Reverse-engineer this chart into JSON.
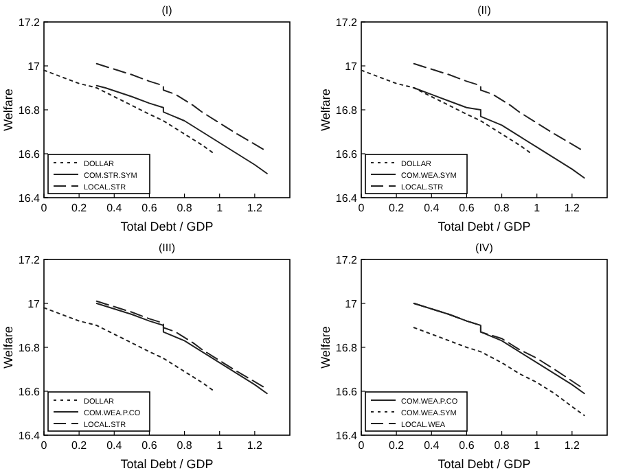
{
  "chart_data": [
    {
      "type": "line",
      "title": "(I)",
      "xlabel": "Total Debt / GDP",
      "ylabel": "Welfare",
      "xlim": [
        0,
        1.4
      ],
      "xticks": [
        0,
        0.2,
        0.4,
        0.6,
        0.8,
        1,
        1.2
      ],
      "ylim": [
        16.4,
        17.2
      ],
      "yticks": [
        16.4,
        16.6,
        16.8,
        17,
        17.2
      ],
      "legend": "bottom left",
      "series": [
        {
          "name": "DOLLAR",
          "color": "#222222",
          "line_style": "dotted",
          "x": [
            0,
            0.2,
            0.3,
            0.4,
            0.5,
            0.6,
            0.68,
            0.8,
            0.9,
            0.97
          ],
          "values": [
            16.98,
            16.92,
            16.9,
            16.86,
            16.82,
            16.78,
            16.75,
            16.69,
            16.64,
            16.6
          ]
        },
        {
          "name": "COM.STR.SYM",
          "color": "#222222",
          "line_style": "solid",
          "x": [
            0.3,
            0.35,
            0.5,
            0.6,
            0.68,
            0.68,
            0.8,
            0.9,
            1.0,
            1.1,
            1.2,
            1.27
          ],
          "values": [
            16.91,
            16.9,
            16.86,
            16.83,
            16.81,
            16.79,
            16.75,
            16.7,
            16.65,
            16.6,
            16.55,
            16.51
          ]
        },
        {
          "name": "LOCAL.STR",
          "color": "#222222",
          "line_style": "dashed",
          "x": [
            0.3,
            0.5,
            0.6,
            0.68,
            0.68,
            0.75,
            0.85,
            0.9,
            1.0,
            1.1,
            1.25
          ],
          "values": [
            17.01,
            16.96,
            16.93,
            16.91,
            16.89,
            16.87,
            16.82,
            16.79,
            16.74,
            16.69,
            16.62
          ]
        }
      ]
    },
    {
      "type": "line",
      "title": "(II)",
      "xlabel": "Total Debt / GDP",
      "ylabel": "Welfare",
      "xlim": [
        0,
        1.4
      ],
      "xticks": [
        0,
        0.2,
        0.4,
        0.6,
        0.8,
        1,
        1.2
      ],
      "ylim": [
        16.4,
        17.2
      ],
      "yticks": [
        16.4,
        16.6,
        16.8,
        17,
        17.2
      ],
      "legend": "bottom left",
      "series": [
        {
          "name": "DOLLAR",
          "color": "#222222",
          "line_style": "dotted",
          "x": [
            0,
            0.2,
            0.3,
            0.4,
            0.5,
            0.6,
            0.68,
            0.8,
            0.9,
            0.97
          ],
          "values": [
            16.98,
            16.92,
            16.9,
            16.86,
            16.82,
            16.78,
            16.75,
            16.69,
            16.64,
            16.6
          ]
        },
        {
          "name": "COM.WEA.SYM",
          "color": "#222222",
          "line_style": "solid",
          "x": [
            0.3,
            0.4,
            0.5,
            0.6,
            0.68,
            0.68,
            0.8,
            0.9,
            1.0,
            1.1,
            1.2,
            1.27
          ],
          "values": [
            16.9,
            16.87,
            16.84,
            16.81,
            16.8,
            16.77,
            16.73,
            16.68,
            16.63,
            16.58,
            16.53,
            16.49
          ]
        },
        {
          "name": "LOCAL.STR",
          "color": "#222222",
          "line_style": "dashed",
          "x": [
            0.3,
            0.5,
            0.6,
            0.68,
            0.68,
            0.75,
            0.85,
            0.9,
            1.0,
            1.1,
            1.25
          ],
          "values": [
            17.01,
            16.96,
            16.93,
            16.91,
            16.89,
            16.87,
            16.82,
            16.79,
            16.74,
            16.69,
            16.62
          ]
        }
      ]
    },
    {
      "type": "line",
      "title": "(III)",
      "xlabel": "Total Debt / GDP",
      "ylabel": "Welfare",
      "xlim": [
        0,
        1.4
      ],
      "xticks": [
        0,
        0.2,
        0.4,
        0.6,
        0.8,
        1,
        1.2
      ],
      "ylim": [
        16.4,
        17.2
      ],
      "yticks": [
        16.4,
        16.6,
        16.8,
        17,
        17.2
      ],
      "legend": "bottom left",
      "series": [
        {
          "name": "DOLLAR",
          "color": "#222222",
          "line_style": "dotted",
          "x": [
            0,
            0.2,
            0.3,
            0.4,
            0.5,
            0.6,
            0.68,
            0.8,
            0.9,
            0.97
          ],
          "values": [
            16.98,
            16.92,
            16.9,
            16.86,
            16.82,
            16.78,
            16.75,
            16.69,
            16.64,
            16.6
          ]
        },
        {
          "name": "COM.WEA.P.CO",
          "color": "#222222",
          "line_style": "solid",
          "x": [
            0.3,
            0.5,
            0.6,
            0.68,
            0.68,
            0.8,
            0.9,
            1.0,
            1.1,
            1.2,
            1.27
          ],
          "values": [
            17.0,
            16.95,
            16.92,
            16.9,
            16.87,
            16.83,
            16.78,
            16.73,
            16.68,
            16.63,
            16.59
          ]
        },
        {
          "name": "LOCAL.STR",
          "color": "#222222",
          "line_style": "dashed",
          "x": [
            0.3,
            0.5,
            0.6,
            0.68,
            0.68,
            0.75,
            0.85,
            0.9,
            1.0,
            1.1,
            1.25
          ],
          "values": [
            17.01,
            16.96,
            16.93,
            16.91,
            16.89,
            16.87,
            16.82,
            16.79,
            16.74,
            16.69,
            16.62
          ]
        }
      ]
    },
    {
      "type": "line",
      "title": "(IV)",
      "xlabel": "Total Debt / GDP",
      "ylabel": "Welfare",
      "xlim": [
        0,
        1.4
      ],
      "xticks": [
        0,
        0.2,
        0.4,
        0.6,
        0.8,
        1,
        1.2
      ],
      "ylim": [
        16.4,
        17.2
      ],
      "yticks": [
        16.4,
        16.6,
        16.8,
        17,
        17.2
      ],
      "legend": "bottom left",
      "series": [
        {
          "name": "COM.WEA.P.CO",
          "color": "#222222",
          "line_style": "solid",
          "x": [
            0.3,
            0.5,
            0.6,
            0.68,
            0.68,
            0.8,
            0.9,
            1.0,
            1.1,
            1.2,
            1.27
          ],
          "values": [
            17.0,
            16.95,
            16.92,
            16.9,
            16.87,
            16.83,
            16.78,
            16.73,
            16.68,
            16.63,
            16.59
          ]
        },
        {
          "name": "COM.WEA.SYM",
          "color": "#222222",
          "line_style": "dotted",
          "x": [
            0.3,
            0.4,
            0.5,
            0.6,
            0.68,
            0.8,
            0.9,
            1.0,
            1.1,
            1.2,
            1.27
          ],
          "values": [
            16.89,
            16.86,
            16.83,
            16.8,
            16.78,
            16.73,
            16.68,
            16.64,
            16.59,
            16.53,
            16.49
          ]
        },
        {
          "name": "LOCAL.WEA",
          "color": "#222222",
          "line_style": "dashed",
          "x": [
            0.3,
            0.5,
            0.6,
            0.68,
            0.68,
            0.8,
            0.9,
            1.0,
            1.1,
            1.25
          ],
          "values": [
            17.0,
            16.95,
            16.92,
            16.9,
            16.87,
            16.84,
            16.79,
            16.75,
            16.7,
            16.62
          ]
        }
      ]
    }
  ]
}
